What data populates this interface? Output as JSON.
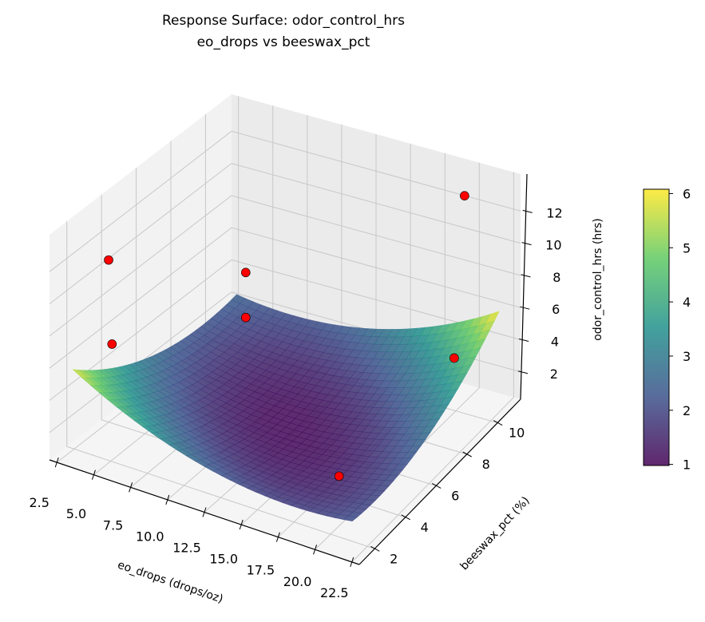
{
  "chart_data": {
    "type": "surface3d",
    "title": "Response Surface: odor_control_hrs",
    "subtitle": "eo_drops vs beeswax_pct",
    "xlabel": "eo_drops (drops/oz)",
    "ylabel": "beeswax_pct (%)",
    "zlabel": "odor_control_hrs (hrs)",
    "xlim": [
      2,
      23
    ],
    "ylim": [
      1,
      11.5
    ],
    "zlim": [
      0.3,
      14.3
    ],
    "xticks": [
      "2.5",
      "5.0",
      "7.5",
      "10.0",
      "12.5",
      "15.0",
      "17.5",
      "20.0",
      "22.5"
    ],
    "yticks": [
      "2",
      "4",
      "6",
      "8",
      "10"
    ],
    "zticks": [
      "2",
      "4",
      "6",
      "8",
      "10",
      "12"
    ],
    "grid": true,
    "colormap": "viridis",
    "surface_alpha": 0.85,
    "surface": {
      "x": [
        3,
        7.75,
        12.5,
        17.25,
        22
      ],
      "y": [
        1.5,
        3.875,
        6.25,
        8.625,
        11
      ],
      "z": [
        [
          5.81,
          3.71,
          2.41,
          1.9,
          2.2
        ],
        [
          3.91,
          2.25,
          1.4,
          1.34,
          2.08
        ],
        [
          2.73,
          1.51,
          1.1,
          1.49,
          2.68
        ],
        [
          2.26,
          1.49,
          1.52,
          2.35,
          3.99
        ],
        [
          2.5,
          2.18,
          2.66,
          3.93,
          6.01
        ]
      ]
    },
    "points": [
      {
        "x": 4.5,
        "y": 2.3,
        "z": 12.4
      },
      {
        "x": 4.5,
        "y": 2.5,
        "z": 7.0
      },
      {
        "x": 8.5,
        "y": 7.0,
        "z": 8.7
      },
      {
        "x": 8.5,
        "y": 7.0,
        "z": 5.9
      },
      {
        "x": 19.5,
        "y": 11.0,
        "z": 12.6
      },
      {
        "x": 21.0,
        "y": 9.0,
        "z": 4.8
      },
      {
        "x": 19.5,
        "y": 3.0,
        "z": 2.8
      }
    ],
    "point_color": "#ff0000",
    "colorbar": {
      "range": [
        0.98,
        6.08
      ],
      "ticks": [
        "1",
        "2",
        "3",
        "4",
        "5",
        "6"
      ]
    }
  }
}
